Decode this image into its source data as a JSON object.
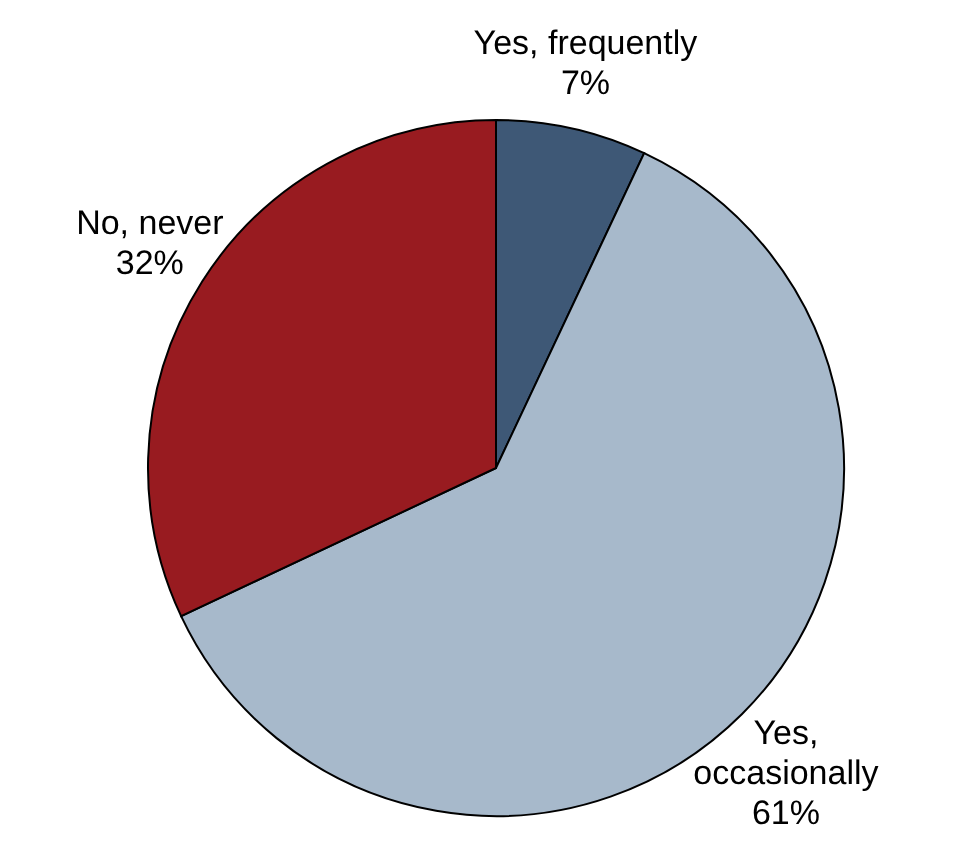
{
  "chart_data": {
    "type": "pie",
    "categories": [
      "Yes, frequently",
      "Yes, occasionally",
      "No, never"
    ],
    "values": [
      7,
      61,
      32
    ],
    "value_labels": [
      "7%",
      "61%",
      "32%"
    ],
    "colors": [
      "#3e5876",
      "#a7b9cb",
      "#981b20"
    ]
  }
}
